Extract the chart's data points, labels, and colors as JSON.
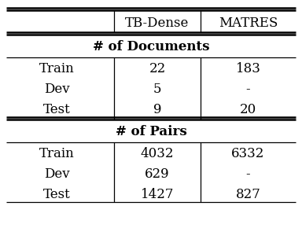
{
  "col_headers": [
    "",
    "TB-Dense",
    "MATRES"
  ],
  "section1_title": "# of Documents",
  "section2_title": "# of Pairs",
  "rows_docs": [
    [
      "Train",
      "22",
      "183"
    ],
    [
      "Dev",
      "5",
      "-"
    ],
    [
      "Test",
      "9",
      "20"
    ]
  ],
  "rows_pairs": [
    [
      "Train",
      "4032",
      "6332"
    ],
    [
      "Dev",
      "629",
      "-"
    ],
    [
      "Test",
      "1427",
      "827"
    ]
  ],
  "bg_color": "#ffffff",
  "text_color": "#000000",
  "font_size": 12,
  "header_font_size": 12,
  "section_font_size": 12
}
